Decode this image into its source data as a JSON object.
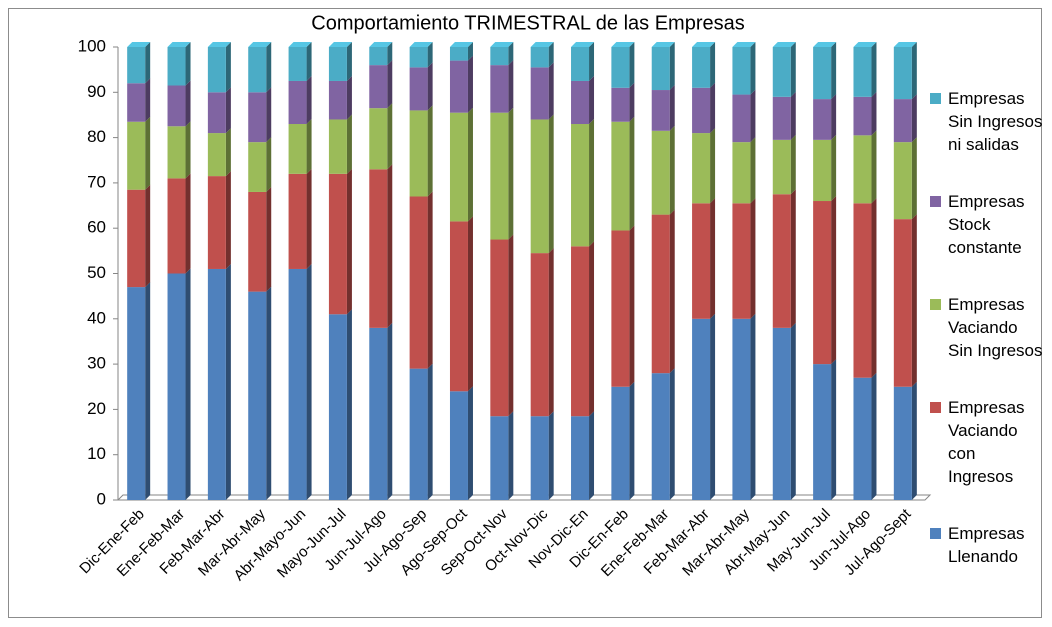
{
  "chart_data": {
    "type": "bar",
    "stacked": true,
    "title": "Comportamiento TRIMESTRAL de las Empresas",
    "categories": [
      "Dic-Ene-Feb",
      "Ene-Feb-Mar",
      "Feb-Mar-Abr",
      "Mar-Abr-May",
      "Abr-Mayo-Jun",
      "Mayo-Jun-Jul",
      "Jun-Jul-Ago",
      "Jul-Ago-Sep",
      "Ago-Sep-Oct",
      "Sep-Oct-Nov",
      "Oct-Nov-Dic",
      "Nov-Dic-En",
      "Dic-En-Feb",
      "Ene-Feb-Mar",
      "Feb-Mar-Abr",
      "Mar-Abr-May",
      "Abr-May-Jun",
      "May-Jun-Jul",
      "Jun-Jul-Ago",
      "Jul-Ago-Sept"
    ],
    "series": [
      {
        "name": "Empresas Llenando",
        "color": "#4f81bd",
        "values": [
          47,
          50,
          51,
          46,
          51,
          41,
          38,
          29,
          24,
          18.5,
          18.5,
          18.5,
          25,
          28,
          40,
          40,
          38,
          30,
          27,
          25
        ]
      },
      {
        "name": "Empresas Vaciando con Ingresos",
        "color": "#c0504d",
        "values": [
          21.5,
          21,
          20.5,
          22,
          21,
          31,
          35,
          38,
          37.5,
          39,
          36,
          37.5,
          34.5,
          35,
          25.5,
          25.5,
          29.5,
          36,
          38.5,
          37
        ]
      },
      {
        "name": "Empresas Vaciando Sin Ingresos",
        "color": "#9bbb59",
        "values": [
          15,
          11.5,
          9.5,
          11,
          11,
          12,
          13.5,
          19,
          24,
          28,
          29.5,
          27,
          24,
          18.5,
          15.5,
          13.5,
          12,
          13.5,
          15,
          17
        ]
      },
      {
        "name": "Empresas Stock constante",
        "color": "#8064a2",
        "values": [
          8.5,
          9,
          9,
          11,
          9.5,
          8.5,
          9.5,
          9.5,
          11.5,
          10.5,
          11.5,
          9.5,
          7.5,
          9,
          10,
          10.5,
          9.5,
          9,
          8.5,
          9.5
        ]
      },
      {
        "name": "Empresas Sin Ingresos ni salidas",
        "color": "#4bacc6",
        "values": [
          8,
          8.5,
          10,
          10,
          7.5,
          7.5,
          4,
          4.5,
          3,
          4,
          4.5,
          7.5,
          9,
          9.5,
          9,
          10.5,
          11,
          11.5,
          11,
          11.5
        ]
      }
    ],
    "ylim": [
      0,
      100
    ],
    "yticks": [
      0,
      10,
      20,
      30,
      40,
      50,
      60,
      70,
      80,
      90,
      100
    ],
    "grid": false,
    "legend": "right"
  }
}
